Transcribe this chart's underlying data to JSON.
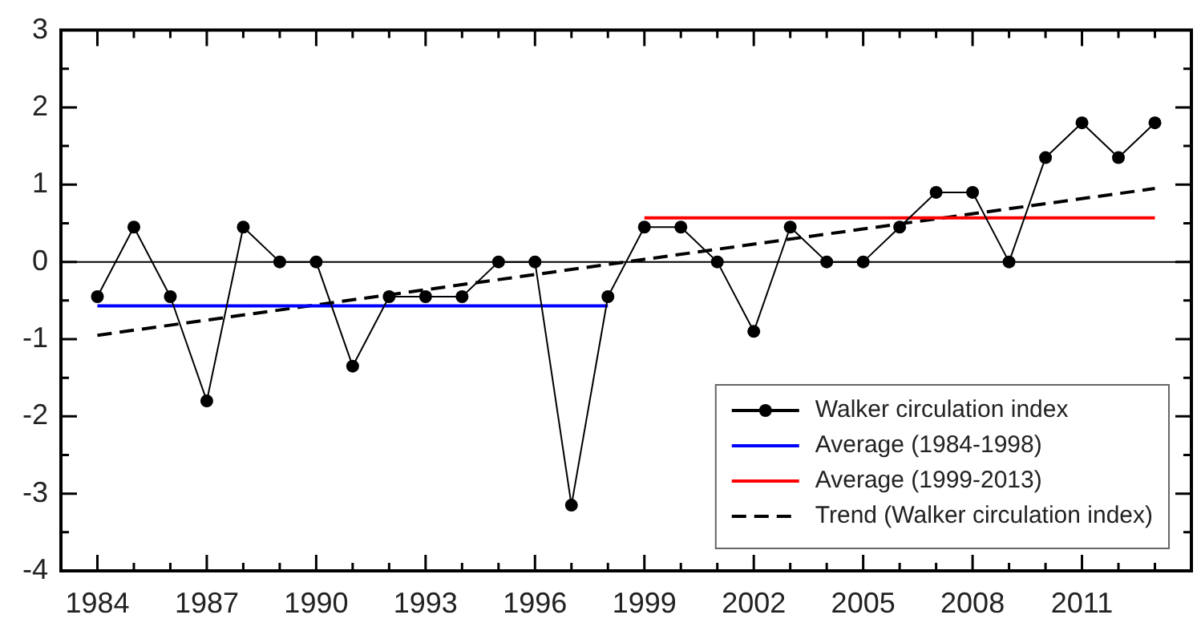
{
  "chart_data": {
    "type": "line",
    "x": [
      1984,
      1985,
      1986,
      1987,
      1988,
      1989,
      1990,
      1991,
      1992,
      1993,
      1994,
      1995,
      1996,
      1997,
      1998,
      1999,
      2000,
      2001,
      2002,
      2003,
      2004,
      2005,
      2006,
      2007,
      2008,
      2009,
      2010,
      2011,
      2012,
      2013
    ],
    "series": [
      {
        "name": "Walker circulation index",
        "color": "#000000",
        "marker": "circle",
        "line_style": "solid",
        "values": [
          -0.45,
          0.45,
          -0.45,
          -1.8,
          0.45,
          0,
          0,
          -1.35,
          -0.45,
          -0.45,
          -0.45,
          0,
          0,
          -3.15,
          -0.45,
          0.45,
          0.45,
          0,
          -0.9,
          0.45,
          0,
          0,
          0.45,
          0.9,
          0.9,
          0,
          1.35,
          1.8,
          1.35,
          1.8
        ]
      },
      {
        "name": "Average (1984-1998)",
        "color": "#0000ff",
        "marker": "none",
        "line_style": "solid",
        "x": [
          1984,
          1998
        ],
        "values": [
          -0.57,
          -0.57
        ]
      },
      {
        "name": "Average (1999-2013)",
        "color": "#ff0000",
        "marker": "none",
        "line_style": "solid",
        "x": [
          1999,
          2013
        ],
        "values": [
          0.57,
          0.57
        ]
      },
      {
        "name": "Trend (Walker circulation index)",
        "color": "#000000",
        "marker": "none",
        "line_style": "dashed",
        "x": [
          1984,
          2013
        ],
        "values": [
          -0.95,
          0.95
        ]
      }
    ],
    "xlim": [
      1983,
      2014
    ],
    "xticks": [
      1984,
      {
        "value": 1985,
        "label": null
      },
      {
        "value": 1986,
        "label": null
      },
      1987,
      {
        "value": 1988,
        "label": null
      },
      {
        "value": 1989,
        "label": null
      },
      1990,
      {
        "value": 1991,
        "label": null
      },
      {
        "value": 1992,
        "label": null
      },
      1993,
      {
        "value": 1994,
        "label": null
      },
      {
        "value": 1995,
        "label": null
      },
      1996,
      {
        "value": 1997,
        "label": null
      },
      {
        "value": 1998,
        "label": null
      },
      1999,
      {
        "value": 2000,
        "label": null
      },
      {
        "value": 2001,
        "label": null
      },
      2002,
      {
        "value": 2003,
        "label": null
      },
      {
        "value": 2004,
        "label": null
      },
      2005,
      {
        "value": 2006,
        "label": null
      },
      {
        "value": 2007,
        "label": null
      },
      2008,
      {
        "value": 2009,
        "label": null
      },
      {
        "value": 2010,
        "label": null
      },
      2011,
      {
        "value": 2012,
        "label": null
      },
      {
        "value": 2013,
        "label": null
      }
    ],
    "ylim": [
      -4,
      3
    ],
    "yticks": [
      -4,
      {
        "value": -3.5,
        "label": null
      },
      -3,
      {
        "value": -2.5,
        "label": null
      },
      -2,
      {
        "value": -1.5,
        "label": null
      },
      -1,
      {
        "value": -0.5,
        "label": null
      },
      0,
      {
        "value": 0.5,
        "label": null
      },
      1,
      {
        "value": 1.5,
        "label": null
      },
      2,
      {
        "value": 2.5,
        "label": null
      },
      3
    ],
    "ref_lines": [
      {
        "axis": "y",
        "value": 0,
        "color": "#000000"
      }
    ],
    "grid": false,
    "legend": "bottom right"
  }
}
